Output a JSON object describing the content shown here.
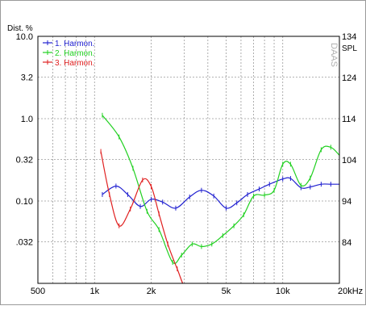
{
  "chart_data": {
    "type": "line",
    "y_left_label": "Dist. %",
    "y_right_label": "SPL",
    "watermark": "DAAS",
    "x_scale": "log",
    "xlim": [
      500,
      20000
    ],
    "y_scale": "log",
    "ylim": [
      0.01,
      10.0
    ],
    "y_right_lim": [
      74,
      134
    ],
    "grid": true,
    "legend_position": "top-left",
    "x_ticks": [
      {
        "value": 500,
        "label": "500"
      },
      {
        "value": 1000,
        "label": "1k"
      },
      {
        "value": 2000,
        "label": "2k"
      },
      {
        "value": 5000,
        "label": "5k"
      },
      {
        "value": 10000,
        "label": "10k"
      },
      {
        "value": 20000,
        "label": "20kHz"
      }
    ],
    "y_left_ticks": [
      {
        "value": 10.0,
        "label": "10.0"
      },
      {
        "value": 3.2,
        "label": "3.2"
      },
      {
        "value": 1.0,
        "label": "1.0"
      },
      {
        "value": 0.32,
        "label": "0.32"
      },
      {
        "value": 0.1,
        "label": "0.10"
      },
      {
        "value": 0.032,
        "label": ".032"
      }
    ],
    "y_right_ticks": [
      {
        "value": 134,
        "label": "134"
      },
      {
        "value": 124,
        "label": "124"
      },
      {
        "value": 114,
        "label": "114"
      },
      {
        "value": 104,
        "label": "104"
      },
      {
        "value": 94,
        "label": "94"
      },
      {
        "value": 84,
        "label": "84"
      }
    ],
    "series": [
      {
        "name": "1. Harmon.",
        "color": "#2020d0",
        "x": [
          1100,
          1300,
          1500,
          1750,
          2000,
          2300,
          2700,
          3200,
          3700,
          4300,
          5000,
          5700,
          6500,
          7500,
          8500,
          10000,
          11000,
          12500,
          14000,
          16000,
          18000,
          20000
        ],
        "y": [
          0.12,
          0.152,
          0.12,
          0.086,
          0.105,
          0.097,
          0.082,
          0.112,
          0.135,
          0.115,
          0.082,
          0.095,
          0.12,
          0.14,
          0.16,
          0.185,
          0.188,
          0.145,
          0.148,
          0.16,
          0.16,
          0.16
        ]
      },
      {
        "name": "2. Harmon.",
        "color": "#20d020",
        "x": [
          1100,
          1350,
          1600,
          1900,
          2200,
          2600,
          2900,
          3300,
          3700,
          4200,
          4800,
          5500,
          6200,
          7000,
          8000,
          9000,
          10000,
          11000,
          12500,
          14000,
          16000,
          18000,
          20000
        ],
        "y": [
          1.1,
          0.6,
          0.25,
          0.075,
          0.045,
          0.018,
          0.022,
          0.03,
          0.028,
          0.03,
          0.038,
          0.05,
          0.068,
          0.115,
          0.118,
          0.135,
          0.28,
          0.28,
          0.155,
          0.19,
          0.42,
          0.45,
          0.36
        ]
      },
      {
        "name": "3. Harmon.",
        "color": "#e02020",
        "x": [
          1080,
          1200,
          1350,
          1550,
          1800,
          2000,
          2200,
          2450,
          2750,
          3100,
          3600,
          4200,
          4900,
          5700,
          6200
        ],
        "y": [
          0.4,
          0.12,
          0.05,
          0.08,
          0.18,
          0.15,
          0.07,
          0.03,
          0.015,
          0.008,
          0.0078,
          0.0085,
          0.008,
          0.0082,
          0.0075
        ]
      }
    ]
  }
}
